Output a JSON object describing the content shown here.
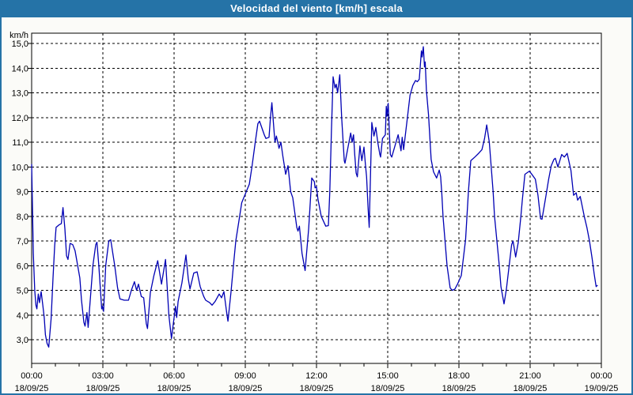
{
  "window": {
    "title": "Velocidad del viento [km/h] escala"
  },
  "colors": {
    "titlebar_bg": "#2573A7",
    "frame_border": "#2573A7",
    "window_bg": "#FBFBF8",
    "plot_bg": "#FFFFFF",
    "grid_color": "#000000",
    "text_color": "#000000",
    "line_color": "#0000B4"
  },
  "chart_data": {
    "type": "line",
    "title": "Velocidad del viento [km/h] escala",
    "xlabel": "",
    "ylabel": "km/h",
    "grid": "dashed",
    "legend": "none",
    "line_color": "#0000B4",
    "x_range_hours": [
      0,
      24
    ],
    "ylim": [
      2.0,
      15.4
    ],
    "y_axis": {
      "unit_label": "km/h",
      "ticks": [
        {
          "value": 15,
          "label": "15,0"
        },
        {
          "value": 14,
          "label": "14,0"
        },
        {
          "value": 13,
          "label": "13,0"
        },
        {
          "value": 12,
          "label": "12,0"
        },
        {
          "value": 11,
          "label": "11,0"
        },
        {
          "value": 10,
          "label": "10,0"
        },
        {
          "value": 9,
          "label": "9,0"
        },
        {
          "value": 8,
          "label": "8,0"
        },
        {
          "value": 7,
          "label": "7,0"
        },
        {
          "value": 6,
          "label": "6,0"
        },
        {
          "value": 5,
          "label": "5,0"
        },
        {
          "value": 4,
          "label": "4,0"
        },
        {
          "value": 3,
          "label": "3,0"
        }
      ]
    },
    "x_axis": {
      "minor_tick_every_hours": 1,
      "ticks": [
        {
          "hour": 0,
          "time": "00:00",
          "date": "18/09/25"
        },
        {
          "hour": 3,
          "time": "03:00",
          "date": "18/09/25"
        },
        {
          "hour": 6,
          "time": "06:00",
          "date": "18/09/25"
        },
        {
          "hour": 9,
          "time": "09:00",
          "date": "18/09/25"
        },
        {
          "hour": 12,
          "time": "12:00",
          "date": "18/09/25"
        },
        {
          "hour": 15,
          "time": "15:00",
          "date": "18/09/25"
        },
        {
          "hour": 18,
          "time": "18:00",
          "date": "18/09/25"
        },
        {
          "hour": 21,
          "time": "21:00",
          "date": "18/09/25"
        },
        {
          "hour": 24,
          "time": "00:00",
          "date": "19/09/25"
        }
      ]
    },
    "series": [
      {
        "name": "Velocidad del viento",
        "unit": "km/h",
        "points": [
          [
            0.0,
            10.1
          ],
          [
            0.03,
            8.6
          ],
          [
            0.07,
            6.5
          ],
          [
            0.13,
            5.0
          ],
          [
            0.18,
            4.4
          ],
          [
            0.22,
            4.25
          ],
          [
            0.28,
            4.85
          ],
          [
            0.33,
            4.5
          ],
          [
            0.4,
            4.95
          ],
          [
            0.47,
            4.4
          ],
          [
            0.53,
            3.9
          ],
          [
            0.58,
            3.2
          ],
          [
            0.65,
            2.85
          ],
          [
            0.72,
            2.7
          ],
          [
            0.82,
            3.85
          ],
          [
            0.9,
            5.5
          ],
          [
            0.97,
            6.8
          ],
          [
            1.03,
            7.55
          ],
          [
            1.15,
            7.65
          ],
          [
            1.25,
            7.7
          ],
          [
            1.32,
            8.35
          ],
          [
            1.4,
            7.5
          ],
          [
            1.47,
            6.4
          ],
          [
            1.53,
            6.25
          ],
          [
            1.62,
            6.9
          ],
          [
            1.73,
            6.85
          ],
          [
            1.83,
            6.6
          ],
          [
            2.03,
            5.5
          ],
          [
            2.1,
            4.6
          ],
          [
            2.2,
            3.7
          ],
          [
            2.25,
            3.55
          ],
          [
            2.33,
            4.1
          ],
          [
            2.38,
            3.5
          ],
          [
            2.5,
            5.0
          ],
          [
            2.58,
            6.0
          ],
          [
            2.7,
            6.85
          ],
          [
            2.75,
            6.95
          ],
          [
            2.83,
            6.0
          ],
          [
            2.95,
            4.25
          ],
          [
            2.98,
            4.35
          ],
          [
            3.03,
            4.15
          ],
          [
            3.12,
            6.0
          ],
          [
            3.25,
            7.0
          ],
          [
            3.33,
            7.05
          ],
          [
            3.5,
            6.0
          ],
          [
            3.62,
            5.1
          ],
          [
            3.72,
            4.65
          ],
          [
            3.9,
            4.6
          ],
          [
            4.08,
            4.6
          ],
          [
            4.2,
            5.0
          ],
          [
            4.33,
            5.35
          ],
          [
            4.42,
            5.0
          ],
          [
            4.5,
            5.25
          ],
          [
            4.62,
            4.75
          ],
          [
            4.72,
            4.7
          ],
          [
            4.83,
            3.65
          ],
          [
            4.88,
            3.45
          ],
          [
            5.0,
            4.9
          ],
          [
            5.15,
            5.6
          ],
          [
            5.31,
            6.2
          ],
          [
            5.47,
            5.25
          ],
          [
            5.64,
            6.25
          ],
          [
            5.78,
            4.0
          ],
          [
            5.89,
            3.05
          ],
          [
            6.06,
            4.35
          ],
          [
            6.11,
            3.9
          ],
          [
            6.17,
            4.55
          ],
          [
            6.33,
            5.3
          ],
          [
            6.5,
            6.43
          ],
          [
            6.6,
            5.45
          ],
          [
            6.67,
            5.05
          ],
          [
            6.83,
            5.7
          ],
          [
            6.97,
            5.75
          ],
          [
            7.1,
            5.15
          ],
          [
            7.25,
            4.75
          ],
          [
            7.33,
            4.6
          ],
          [
            7.5,
            4.5
          ],
          [
            7.6,
            4.4
          ],
          [
            7.73,
            4.55
          ],
          [
            7.9,
            4.85
          ],
          [
            8.0,
            4.7
          ],
          [
            8.1,
            4.95
          ],
          [
            8.23,
            4.0
          ],
          [
            8.27,
            3.75
          ],
          [
            8.4,
            4.95
          ],
          [
            8.5,
            6.0
          ],
          [
            8.6,
            7.0
          ],
          [
            8.73,
            7.8
          ],
          [
            8.85,
            8.55
          ],
          [
            9.0,
            8.9
          ],
          [
            9.17,
            9.3
          ],
          [
            9.28,
            10.0
          ],
          [
            9.42,
            11.0
          ],
          [
            9.53,
            11.75
          ],
          [
            9.6,
            11.85
          ],
          [
            9.8,
            11.3
          ],
          [
            9.87,
            11.15
          ],
          [
            10.0,
            11.2
          ],
          [
            10.06,
            12.0
          ],
          [
            10.12,
            12.6
          ],
          [
            10.22,
            11.35
          ],
          [
            10.25,
            11.0
          ],
          [
            10.31,
            11.25
          ],
          [
            10.39,
            10.9
          ],
          [
            10.42,
            10.75
          ],
          [
            10.5,
            11.0
          ],
          [
            10.58,
            10.45
          ],
          [
            10.67,
            9.9
          ],
          [
            10.7,
            9.7
          ],
          [
            10.8,
            10.05
          ],
          [
            10.91,
            9.0
          ],
          [
            11.0,
            8.75
          ],
          [
            11.17,
            7.55
          ],
          [
            11.22,
            7.4
          ],
          [
            11.28,
            7.6
          ],
          [
            11.39,
            6.5
          ],
          [
            11.52,
            5.8
          ],
          [
            11.67,
            7.5
          ],
          [
            11.8,
            9.55
          ],
          [
            11.91,
            9.4
          ],
          [
            11.94,
            9.15
          ],
          [
            12.0,
            9.2
          ],
          [
            12.06,
            8.7
          ],
          [
            12.2,
            8.0
          ],
          [
            12.39,
            7.6
          ],
          [
            12.5,
            7.62
          ],
          [
            12.56,
            9.0
          ],
          [
            12.63,
            11.5
          ],
          [
            12.7,
            13.65
          ],
          [
            12.78,
            13.2
          ],
          [
            12.83,
            13.35
          ],
          [
            12.89,
            13.0
          ],
          [
            12.98,
            13.73
          ],
          [
            13.06,
            12.0
          ],
          [
            13.17,
            10.25
          ],
          [
            13.2,
            10.15
          ],
          [
            13.44,
            11.37
          ],
          [
            13.5,
            11.0
          ],
          [
            13.56,
            11.3
          ],
          [
            13.61,
            10.5
          ],
          [
            13.67,
            9.75
          ],
          [
            13.72,
            9.6
          ],
          [
            13.83,
            10.85
          ],
          [
            13.91,
            10.25
          ],
          [
            14.0,
            10.8
          ],
          [
            14.06,
            10.1
          ],
          [
            14.11,
            9.6
          ],
          [
            14.17,
            8.4
          ],
          [
            14.22,
            7.55
          ],
          [
            14.33,
            11.8
          ],
          [
            14.42,
            11.25
          ],
          [
            14.5,
            11.6
          ],
          [
            14.58,
            11.0
          ],
          [
            14.67,
            10.5
          ],
          [
            14.7,
            10.4
          ],
          [
            14.78,
            11.15
          ],
          [
            14.9,
            11.3
          ],
          [
            14.94,
            12.45
          ],
          [
            14.97,
            12.05
          ],
          [
            15.02,
            12.57
          ],
          [
            15.11,
            10.5
          ],
          [
            15.17,
            10.4
          ],
          [
            15.44,
            11.3
          ],
          [
            15.56,
            10.65
          ],
          [
            15.61,
            11.2
          ],
          [
            15.67,
            10.7
          ],
          [
            15.83,
            12.0
          ],
          [
            15.94,
            12.9
          ],
          [
            16.06,
            13.3
          ],
          [
            16.17,
            13.5
          ],
          [
            16.25,
            13.45
          ],
          [
            16.33,
            13.55
          ],
          [
            16.42,
            14.7
          ],
          [
            16.45,
            14.45
          ],
          [
            16.5,
            14.87
          ],
          [
            16.55,
            14.05
          ],
          [
            16.58,
            14.25
          ],
          [
            16.63,
            13.1
          ],
          [
            16.72,
            12.1
          ],
          [
            16.83,
            10.3
          ],
          [
            16.93,
            9.8
          ],
          [
            17.06,
            9.55
          ],
          [
            17.17,
            9.87
          ],
          [
            17.23,
            9.6
          ],
          [
            17.28,
            8.9
          ],
          [
            17.33,
            8.0
          ],
          [
            17.5,
            6.0
          ],
          [
            17.63,
            5.1
          ],
          [
            17.72,
            5.0
          ],
          [
            17.83,
            5.05
          ],
          [
            17.94,
            5.25
          ],
          [
            18.1,
            5.6
          ],
          [
            18.28,
            7.05
          ],
          [
            18.4,
            9.0
          ],
          [
            18.5,
            10.25
          ],
          [
            18.67,
            10.4
          ],
          [
            18.83,
            10.55
          ],
          [
            18.97,
            10.7
          ],
          [
            19.08,
            11.15
          ],
          [
            19.17,
            11.7
          ],
          [
            19.28,
            11.0
          ],
          [
            19.44,
            9.0
          ],
          [
            19.5,
            8.0
          ],
          [
            19.6,
            7.0
          ],
          [
            19.7,
            6.0
          ],
          [
            19.77,
            5.15
          ],
          [
            19.9,
            4.45
          ],
          [
            20.0,
            5.05
          ],
          [
            20.22,
            6.85
          ],
          [
            20.28,
            7.0
          ],
          [
            20.39,
            6.35
          ],
          [
            20.5,
            6.95
          ],
          [
            20.61,
            8.0
          ],
          [
            20.67,
            8.65
          ],
          [
            20.78,
            9.7
          ],
          [
            20.97,
            9.83
          ],
          [
            21.11,
            9.65
          ],
          [
            21.22,
            9.5
          ],
          [
            21.33,
            8.85
          ],
          [
            21.44,
            7.9
          ],
          [
            21.5,
            7.88
          ],
          [
            21.67,
            8.85
          ],
          [
            21.78,
            9.5
          ],
          [
            21.89,
            10.05
          ],
          [
            22.0,
            10.3
          ],
          [
            22.06,
            10.35
          ],
          [
            22.17,
            10.0
          ],
          [
            22.33,
            10.5
          ],
          [
            22.44,
            10.4
          ],
          [
            22.56,
            10.55
          ],
          [
            22.72,
            9.85
          ],
          [
            22.83,
            8.85
          ],
          [
            22.94,
            8.95
          ],
          [
            23.0,
            8.65
          ],
          [
            23.11,
            8.8
          ],
          [
            23.28,
            8.0
          ],
          [
            23.39,
            7.55
          ],
          [
            23.5,
            7.0
          ],
          [
            23.61,
            6.3
          ],
          [
            23.7,
            5.65
          ],
          [
            23.78,
            5.15
          ],
          [
            23.83,
            5.2
          ]
        ]
      }
    ]
  }
}
